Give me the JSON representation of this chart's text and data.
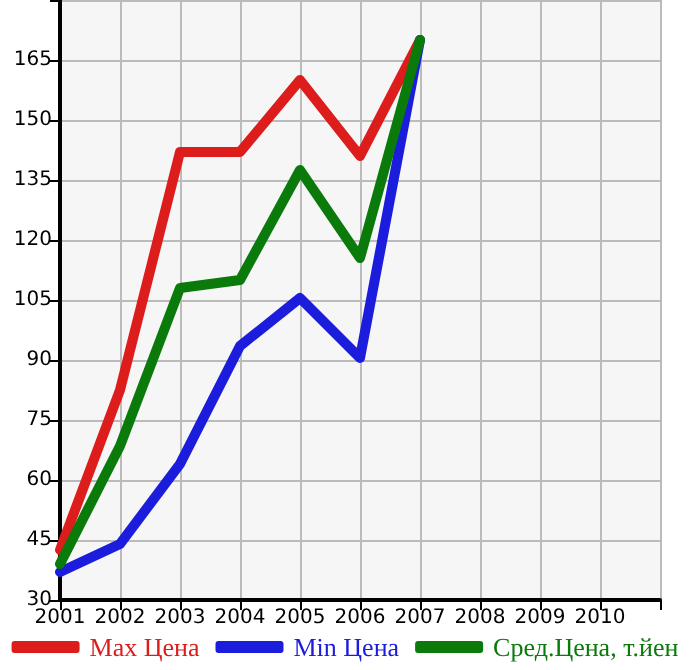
{
  "chart_data": {
    "type": "line",
    "x": [
      2001,
      2002,
      2003,
      2004,
      2005,
      2006,
      2007
    ],
    "series": [
      {
        "name": "Max Цена",
        "color": "#dd1c1c",
        "values": [
          42.5,
          82.5,
          142,
          142,
          160,
          141,
          170
        ]
      },
      {
        "name": "Min Цена",
        "color": "#1c1cdd",
        "values": [
          37,
          44,
          64,
          93.5,
          105.5,
          90.5,
          170
        ]
      },
      {
        "name": "Сред.Цена, т.йен",
        "color": "#0a7a0a",
        "values": [
          39,
          68.5,
          108,
          110,
          137.5,
          115.5,
          170
        ]
      }
    ],
    "xlim": [
      2001,
      2011
    ],
    "xticks": [
      2001,
      2002,
      2003,
      2004,
      2005,
      2006,
      2007,
      2008,
      2009,
      2010,
      {
        "value": 2011,
        "label": null
      }
    ],
    "ylim": [
      30,
      180
    ],
    "yticks": [
      30,
      45,
      60,
      75,
      90,
      105,
      120,
      135,
      150,
      165,
      {
        "value": 180,
        "label": null
      }
    ],
    "grid": true,
    "legend": "bottom",
    "marker": "none",
    "line_style": "solid"
  }
}
